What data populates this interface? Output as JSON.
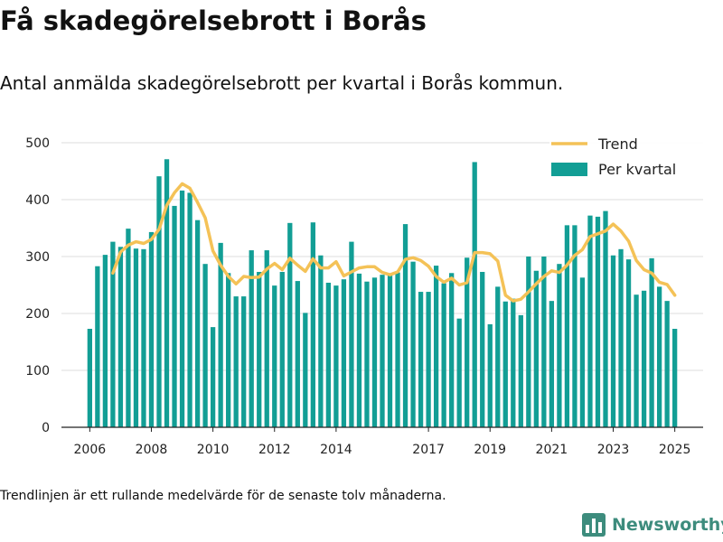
{
  "header": {
    "title": "Få skadegörelsebrott i Borås",
    "subtitle": "Antal anmälda skadegörelsebrott per kvartal i Borås kommun."
  },
  "footer": {
    "note": "Trendlinjen är ett rullande medelvärde för de senaste tolv månaderna.",
    "brand": "Newsworthy"
  },
  "colors": {
    "bar": "#129e95",
    "trend": "#f4c257",
    "grid": "#dddddd",
    "logo": "#3d8c7d"
  },
  "icons": {
    "logo": "bar-chart-logo-icon"
  },
  "chart_data": {
    "type": "bar",
    "ylim": [
      0,
      500
    ],
    "yticks": [
      0,
      100,
      200,
      300,
      400,
      500
    ],
    "xlim": [
      2005.08,
      2025.92
    ],
    "xticks": [
      2006,
      2008,
      2010,
      2012,
      2014,
      2017,
      2019,
      2021,
      2023,
      2025
    ],
    "grid": true,
    "legend_position": "top-right",
    "series": [
      {
        "name": "Per kvartal",
        "type": "bar",
        "x": [
          2006,
          2006.25,
          2006.5,
          2006.75,
          2007,
          2007.25,
          2007.5,
          2007.75,
          2008,
          2008.25,
          2008.5,
          2008.75,
          2009,
          2009.25,
          2009.5,
          2009.75,
          2010,
          2010.25,
          2010.5,
          2010.75,
          2011,
          2011.25,
          2011.5,
          2011.75,
          2012,
          2012.25,
          2012.5,
          2012.75,
          2013,
          2013.25,
          2013.5,
          2013.75,
          2014,
          2014.25,
          2014.5,
          2014.75,
          2015,
          2015.25,
          2015.5,
          2015.75,
          2016,
          2016.25,
          2016.5,
          2016.75,
          2017,
          2017.25,
          2017.5,
          2017.75,
          2018,
          2018.25,
          2018.5,
          2018.75,
          2019,
          2019.25,
          2019.5,
          2019.75,
          2020,
          2020.25,
          2020.5,
          2020.75,
          2021,
          2021.25,
          2021.5,
          2021.75,
          2022,
          2022.25,
          2022.5,
          2022.75,
          2023,
          2023.25,
          2023.5,
          2023.75,
          2024,
          2024.25,
          2024.5,
          2024.75,
          2025
        ],
        "values": [
          173,
          283,
          303,
          326,
          317,
          349,
          314,
          313,
          343,
          441,
          471,
          389,
          416,
          412,
          364,
          287,
          176,
          324,
          271,
          230,
          230,
          311,
          273,
          311,
          249,
          273,
          359,
          257,
          201,
          360,
          302,
          254,
          249,
          260,
          326,
          270,
          256,
          263,
          268,
          268,
          272,
          357,
          291,
          238,
          238,
          284,
          253,
          271,
          191,
          298,
          466,
          273,
          181,
          247,
          221,
          226,
          197,
          300,
          275,
          300,
          222,
          287,
          355,
          355,
          263,
          372,
          370,
          380,
          302,
          313,
          295,
          233,
          240,
          297,
          247,
          222,
          173
        ]
      },
      {
        "name": "Trend",
        "type": "line",
        "x": [
          2006.75,
          2007,
          2007.25,
          2007.5,
          2007.75,
          2008,
          2008.25,
          2008.5,
          2008.75,
          2009,
          2009.25,
          2009.5,
          2009.75,
          2010,
          2010.25,
          2010.5,
          2010.75,
          2011,
          2011.25,
          2011.5,
          2011.75,
          2012,
          2012.25,
          2012.5,
          2012.75,
          2013,
          2013.25,
          2013.5,
          2013.75,
          2014,
          2014.25,
          2014.5,
          2014.75,
          2015,
          2015.25,
          2015.5,
          2015.75,
          2016,
          2016.25,
          2016.5,
          2016.75,
          2017,
          2017.25,
          2017.5,
          2017.75,
          2018,
          2018.25,
          2018.5,
          2018.75,
          2019,
          2019.25,
          2019.5,
          2019.75,
          2020,
          2020.25,
          2020.5,
          2020.75,
          2021,
          2021.25,
          2021.5,
          2021.75,
          2022,
          2022.25,
          2022.5,
          2022.75,
          2023,
          2023.25,
          2023.5,
          2023.75,
          2024,
          2024.25,
          2024.5,
          2024.75,
          2025
        ],
        "values": [
          271,
          308,
          320,
          326,
          323,
          330,
          348,
          390,
          412,
          428,
          420,
          395,
          368,
          310,
          285,
          265,
          252,
          265,
          263,
          264,
          278,
          288,
          277,
          297,
          285,
          274,
          296,
          280,
          280,
          291,
          266,
          273,
          280,
          282,
          282,
          272,
          268,
          273,
          295,
          298,
          293,
          283,
          265,
          255,
          262,
          250,
          254,
          307,
          307,
          305,
          292,
          232,
          222,
          225,
          238,
          252,
          265,
          275,
          272,
          285,
          302,
          312,
          335,
          340,
          345,
          357,
          345,
          327,
          293,
          277,
          271,
          255,
          251,
          232
        ]
      }
    ]
  }
}
